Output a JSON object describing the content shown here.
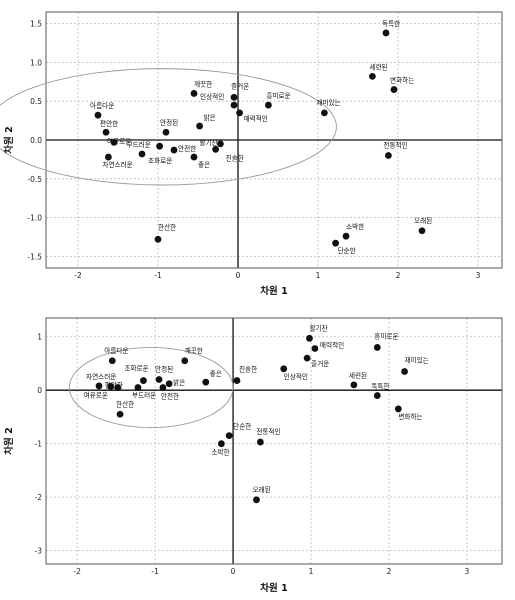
{
  "chart_data": [
    {
      "type": "scatter",
      "xlabel": "차원 1",
      "ylabel": "차원 2",
      "xlim": [
        -2.4,
        3.3
      ],
      "ylim": [
        -1.65,
        1.65
      ],
      "xticks": [
        -2,
        -1,
        0,
        1,
        2,
        3
      ],
      "yticks": [
        -1.5,
        -1.0,
        -0.5,
        0.0,
        0.5,
        1.0,
        1.5
      ],
      "ytick_labels": [
        "-1.5",
        "-1.0",
        "-0.5",
        "0.0",
        "0.5",
        "1.0",
        "1.5"
      ],
      "grid": true,
      "cluster_ellipse": {
        "cx": -0.95,
        "cy": 0.17,
        "rx": 2.18,
        "ry": 0.75
      },
      "points": [
        {
          "label": "독특한",
          "x": 1.85,
          "y": 1.38
        },
        {
          "label": "세련된",
          "x": 1.68,
          "y": 0.82
        },
        {
          "label": "변화하는",
          "x": 1.95,
          "y": 0.65
        },
        {
          "label": "깨끗한",
          "x": -0.55,
          "y": 0.6
        },
        {
          "label": "즐거운",
          "x": -0.05,
          "y": 0.55
        },
        {
          "label": "인상적인",
          "x": -0.05,
          "y": 0.45
        },
        {
          "label": "흥미로운",
          "x": 0.38,
          "y": 0.45
        },
        {
          "label": "매력적인",
          "x": 0.02,
          "y": 0.35
        },
        {
          "label": "재미있는",
          "x": 1.08,
          "y": 0.35
        },
        {
          "label": "아름다운",
          "x": -1.75,
          "y": 0.32
        },
        {
          "label": "밝은",
          "x": -0.48,
          "y": 0.18
        },
        {
          "label": "편안한",
          "x": -1.65,
          "y": 0.1
        },
        {
          "label": "안정된",
          "x": -0.9,
          "y": 0.1
        },
        {
          "label": "여유로운",
          "x": -1.55,
          "y": -0.03
        },
        {
          "label": "부드러운",
          "x": -0.98,
          "y": -0.08
        },
        {
          "label": "안전한",
          "x": -0.8,
          "y": -0.13
        },
        {
          "label": "활기찬",
          "x": -0.22,
          "y": -0.05
        },
        {
          "label": "진솔한",
          "x": -0.28,
          "y": -0.12
        },
        {
          "label": "자연스러운",
          "x": -1.62,
          "y": -0.22
        },
        {
          "label": "조화로운",
          "x": -1.2,
          "y": -0.18
        },
        {
          "label": "좋은",
          "x": -0.55,
          "y": -0.22
        },
        {
          "label": "전통적인",
          "x": 1.88,
          "y": -0.2
        },
        {
          "label": "소박한",
          "x": 1.35,
          "y": -1.24
        },
        {
          "label": "오래된",
          "x": 2.3,
          "y": -1.17
        },
        {
          "label": "한산한",
          "x": -1.0,
          "y": -1.28
        },
        {
          "label": "단순한",
          "x": 1.22,
          "y": -1.33
        }
      ]
    },
    {
      "type": "scatter",
      "xlabel": "차원 1",
      "ylabel": "차원 2",
      "xlim": [
        -2.4,
        3.45
      ],
      "ylim": [
        -3.25,
        1.35
      ],
      "xticks": [
        -2,
        -1,
        0,
        1,
        2,
        3
      ],
      "yticks": [
        -3,
        -2,
        -1,
        0,
        1
      ],
      "ytick_labels": [
        "-3",
        "-2",
        "-1",
        "0",
        "1"
      ],
      "grid": true,
      "cluster_ellipse": {
        "cx": -1.05,
        "cy": 0.05,
        "rx": 1.05,
        "ry": 0.75
      },
      "points": [
        {
          "label": "활기찬",
          "x": 0.98,
          "y": 0.97
        },
        {
          "label": "흥미로운",
          "x": 1.85,
          "y": 0.8
        },
        {
          "label": "매력적인",
          "x": 1.05,
          "y": 0.78
        },
        {
          "label": "즐거운",
          "x": 0.95,
          "y": 0.6
        },
        {
          "label": "아름다운",
          "x": -1.55,
          "y": 0.55
        },
        {
          "label": "깨끗한",
          "x": -0.62,
          "y": 0.55
        },
        {
          "label": "인상적인",
          "x": 0.65,
          "y": 0.4
        },
        {
          "label": "재미있는",
          "x": 2.2,
          "y": 0.35
        },
        {
          "label": "안정된",
          "x": -0.95,
          "y": 0.2
        },
        {
          "label": "좋은",
          "x": -0.35,
          "y": 0.15
        },
        {
          "label": "진솔한",
          "x": 0.05,
          "y": 0.18
        },
        {
          "label": "조화로운",
          "x": -1.15,
          "y": 0.18
        },
        {
          "label": "밝은",
          "x": -0.82,
          "y": 0.12
        },
        {
          "label": "세련된",
          "x": 1.55,
          "y": 0.1
        },
        {
          "label": "자연스러운",
          "x": -1.72,
          "y": 0.08
        },
        {
          "label": "편안한",
          "x": -1.57,
          "y": 0.07
        },
        {
          "label": "안전한",
          "x": -0.9,
          "y": 0.05
        },
        {
          "label": "부드러운",
          "x": -1.22,
          "y": 0.05
        },
        {
          "label": "여유로운",
          "x": -1.48,
          "y": 0.05
        },
        {
          "label": "독특한",
          "x": 1.85,
          "y": -0.1
        },
        {
          "label": "변화하는",
          "x": 2.12,
          "y": -0.35
        },
        {
          "label": "한산한",
          "x": -1.45,
          "y": -0.45
        },
        {
          "label": "단순한",
          "x": -0.05,
          "y": -0.85
        },
        {
          "label": "전통적인",
          "x": 0.35,
          "y": -0.97
        },
        {
          "label": "소박한",
          "x": -0.15,
          "y": -1.0
        },
        {
          "label": "오래된",
          "x": 0.3,
          "y": -2.05
        }
      ]
    }
  ]
}
